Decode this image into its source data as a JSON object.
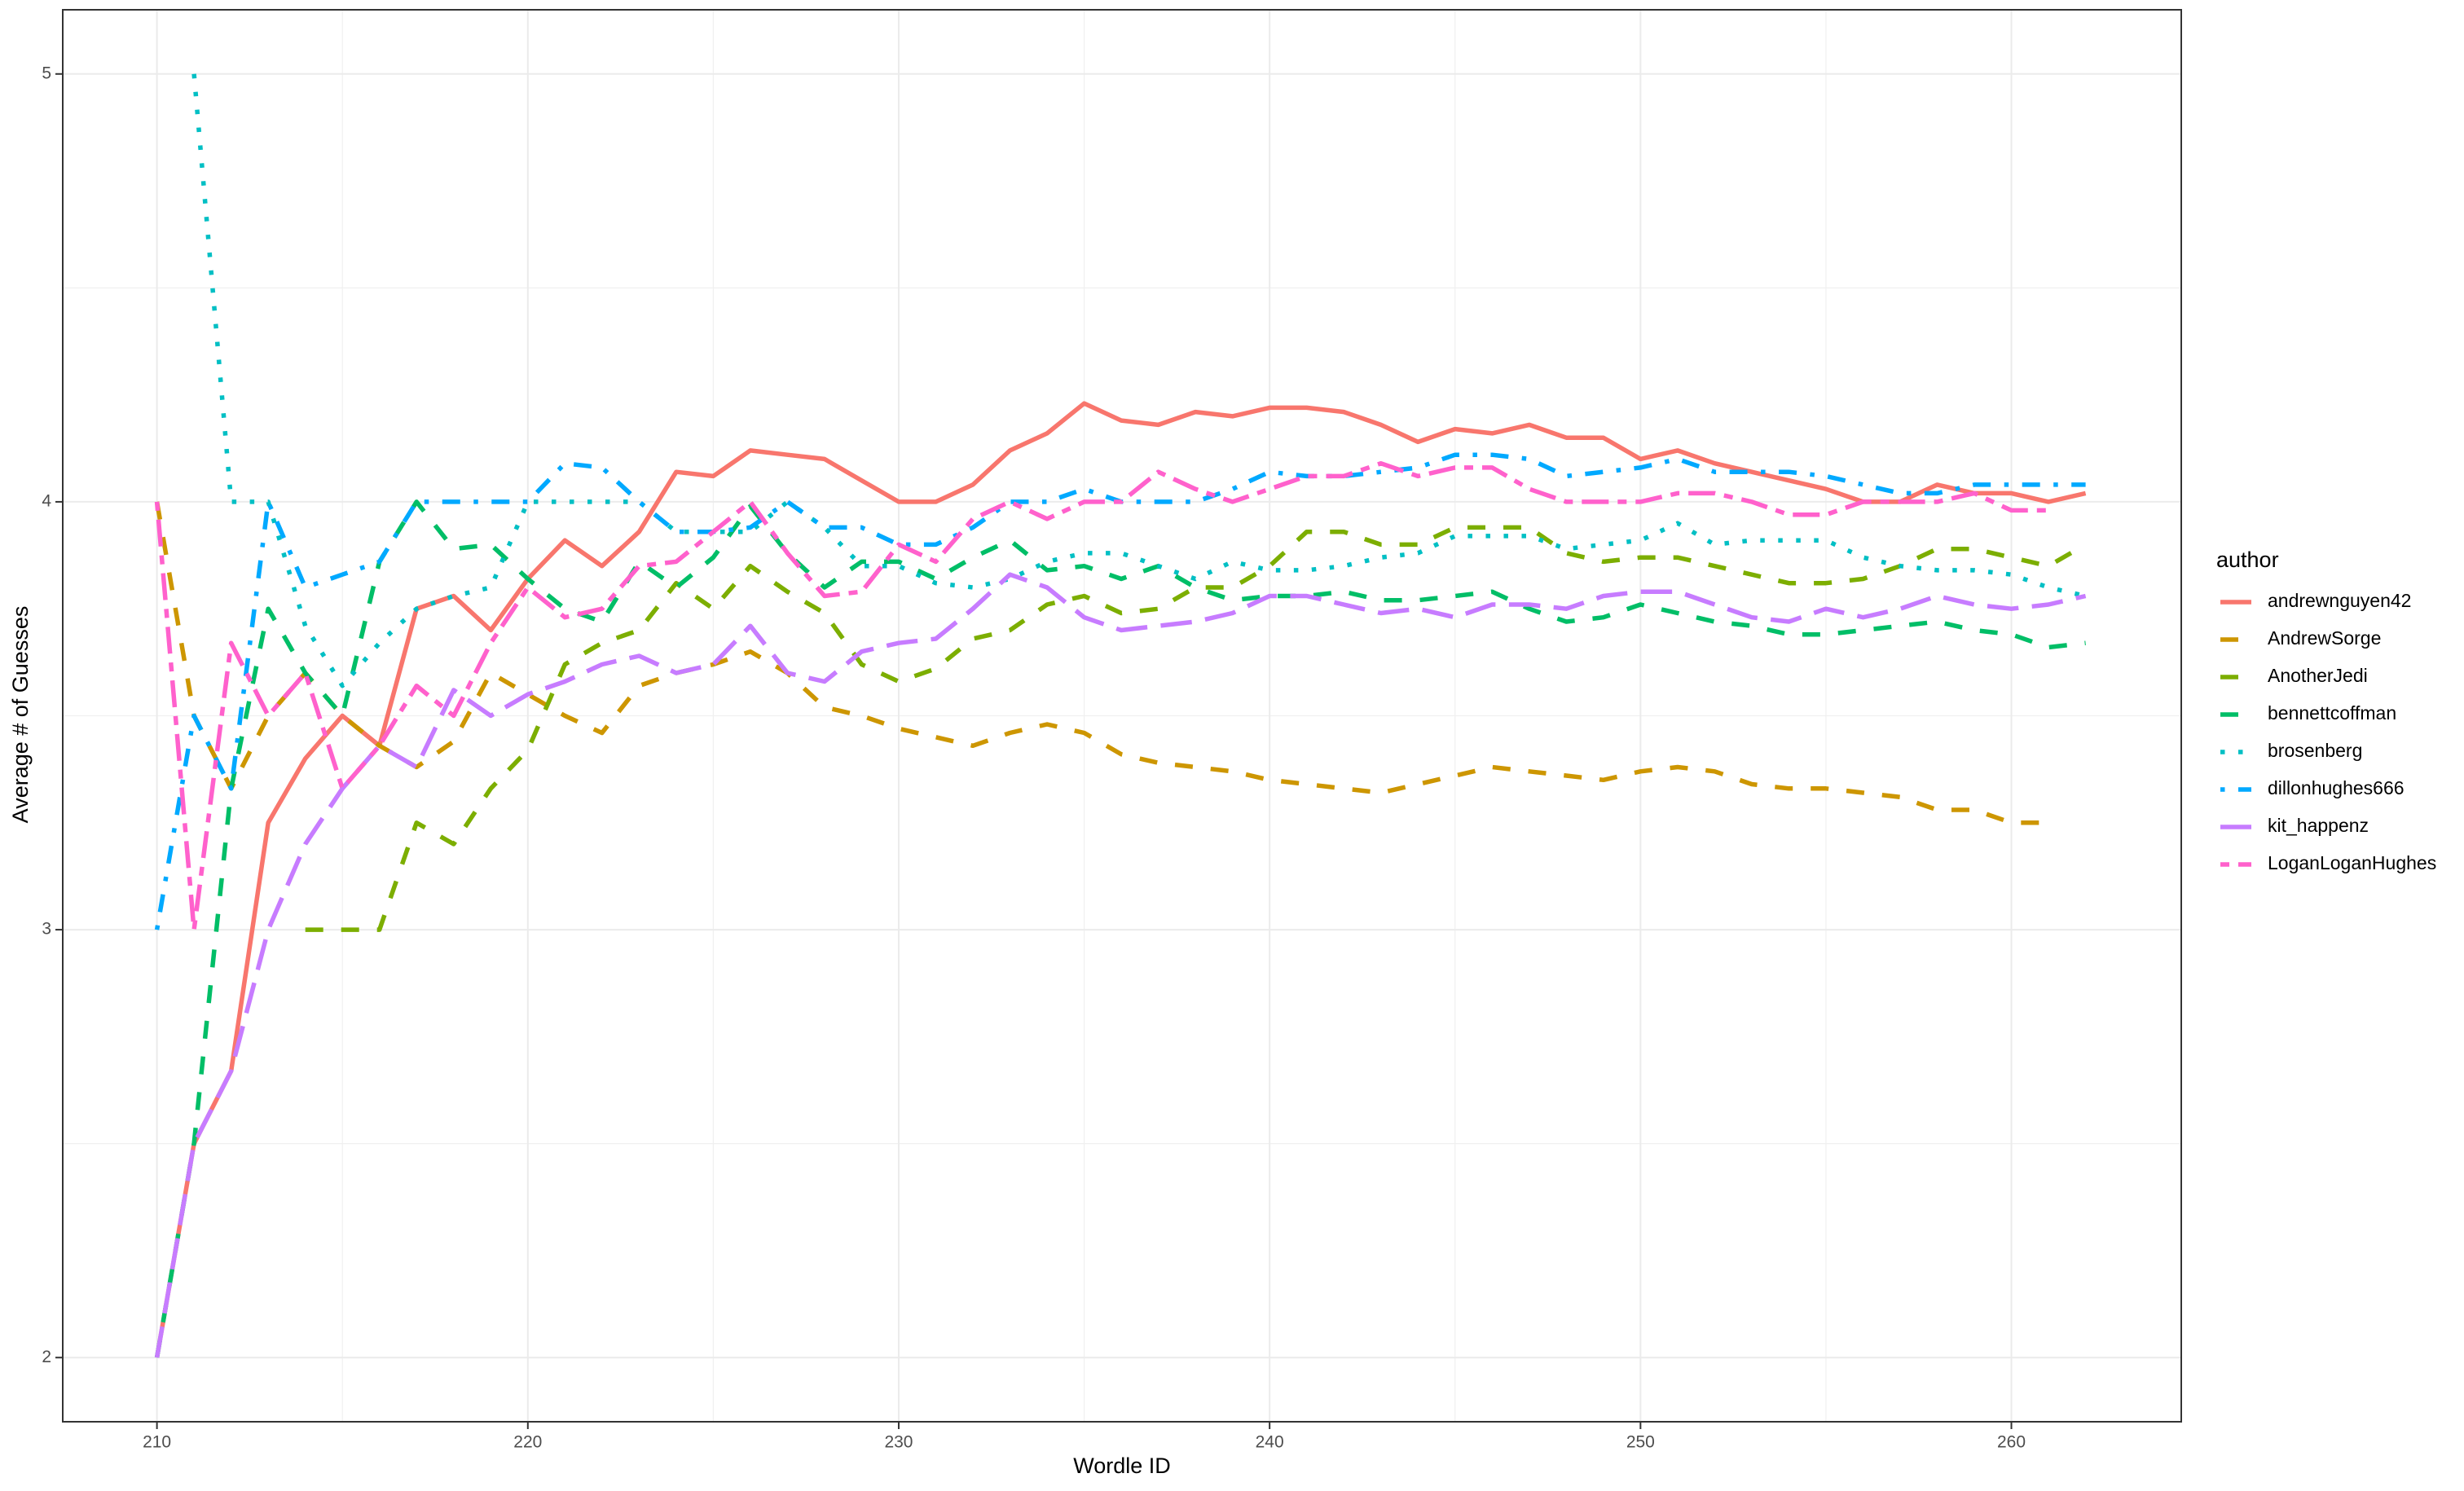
{
  "chart_data": {
    "type": "line",
    "x_label": "Wordle ID",
    "y_label": "Average # of Guesses",
    "legend_title": "author",
    "legend_position": "right",
    "grid": true,
    "xlim": [
      207.46,
      264.58
    ],
    "ylim": [
      1.85,
      5.15
    ],
    "xticks": [
      210,
      220,
      230,
      240,
      250,
      260
    ],
    "yticks": [
      2,
      3,
      4,
      5
    ],
    "x_minor_ticks": [
      215,
      225,
      235,
      245,
      255
    ],
    "y_minor_ticks": [
      2.5,
      3.5,
      4.5
    ],
    "x": [
      210,
      211,
      212,
      213,
      214,
      215,
      216,
      217,
      218,
      219,
      220,
      221,
      222,
      223,
      224,
      225,
      226,
      227,
      228,
      229,
      230,
      231,
      232,
      233,
      234,
      235,
      236,
      237,
      238,
      239,
      240,
      241,
      242,
      243,
      244,
      245,
      246,
      247,
      248,
      249,
      250,
      251,
      252,
      253,
      254,
      255,
      256,
      257,
      258,
      259,
      260,
      261,
      262
    ],
    "series": [
      {
        "name": "andrewnguyen42",
        "color": "#F8766D",
        "linetype": "solid",
        "values": [
          2.0,
          2.5,
          2.67,
          3.25,
          3.4,
          3.5,
          3.43,
          3.75,
          3.78,
          3.7,
          3.82,
          3.91,
          3.85,
          3.93,
          4.07,
          4.06,
          4.12,
          4.11,
          4.1,
          4.05,
          4.0,
          4.0,
          4.04,
          4.12,
          4.16,
          4.23,
          4.19,
          4.18,
          4.21,
          4.2,
          4.22,
          4.22,
          4.21,
          4.18,
          4.14,
          4.17,
          4.16,
          4.18,
          4.15,
          4.15,
          4.1,
          4.12,
          4.09,
          4.07,
          4.05,
          4.03,
          4.0,
          4.0,
          4.04,
          4.02,
          4.02,
          4.0,
          4.02
        ]
      },
      {
        "name": "AndrewSorge",
        "color": "#CD9600",
        "linetype": "dashed",
        "values": [
          4.0,
          3.5,
          3.33,
          3.5,
          3.6,
          3.5,
          3.43,
          3.38,
          3.44,
          3.6,
          3.55,
          3.5,
          3.46,
          3.57,
          3.6,
          3.62,
          3.65,
          3.6,
          3.52,
          3.5,
          3.47,
          3.45,
          3.43,
          3.46,
          3.48,
          3.46,
          3.41,
          3.39,
          3.38,
          3.37,
          3.35,
          3.34,
          3.33,
          3.32,
          3.34,
          3.36,
          3.38,
          3.37,
          3.36,
          3.35,
          3.37,
          3.38,
          3.37,
          3.34,
          3.33,
          3.33,
          3.32,
          3.31,
          3.28,
          3.28,
          3.25,
          3.25,
          null
        ]
      },
      {
        "name": "AnotherJedi",
        "color": "#7CAE00",
        "linetype": "dashed",
        "values": [
          null,
          null,
          null,
          null,
          3.0,
          3.0,
          3.0,
          3.25,
          3.2,
          3.33,
          3.42,
          3.62,
          3.67,
          3.7,
          3.81,
          3.75,
          3.85,
          3.79,
          3.74,
          3.62,
          3.58,
          3.61,
          3.68,
          3.7,
          3.76,
          3.78,
          3.74,
          3.75,
          3.8,
          3.8,
          3.85,
          3.93,
          3.93,
          3.9,
          3.9,
          3.94,
          3.94,
          3.94,
          3.88,
          3.86,
          3.87,
          3.87,
          3.85,
          3.83,
          3.81,
          3.81,
          3.82,
          3.85,
          3.89,
          3.89,
          3.87,
          3.85,
          3.9
        ]
      },
      {
        "name": "bennettcoffman",
        "color": "#00BE67",
        "linetype": "dashed",
        "values": [
          2.0,
          2.5,
          3.33,
          3.75,
          3.6,
          3.5,
          3.86,
          4.0,
          3.89,
          3.9,
          3.82,
          3.75,
          3.72,
          3.86,
          3.8,
          3.87,
          3.99,
          3.88,
          3.8,
          3.86,
          3.86,
          3.82,
          3.87,
          3.91,
          3.84,
          3.85,
          3.82,
          3.85,
          3.8,
          3.77,
          3.78,
          3.78,
          3.79,
          3.77,
          3.77,
          3.78,
          3.79,
          3.75,
          3.72,
          3.73,
          3.76,
          3.74,
          3.72,
          3.71,
          3.69,
          3.69,
          3.7,
          3.71,
          3.72,
          3.7,
          3.69,
          3.66,
          3.67
        ]
      },
      {
        "name": "brosenberg",
        "color": "#00BFC4",
        "linetype": "dotted",
        "values": [
          null,
          5.0,
          4.0,
          4.0,
          3.71,
          3.57,
          3.67,
          3.75,
          3.78,
          3.8,
          4.0,
          4.0,
          4.0,
          4.0,
          3.93,
          3.93,
          3.93,
          4.0,
          3.94,
          3.85,
          3.85,
          3.81,
          3.8,
          3.82,
          3.86,
          3.88,
          3.88,
          3.85,
          3.82,
          3.86,
          3.84,
          3.84,
          3.85,
          3.87,
          3.88,
          3.92,
          3.92,
          3.92,
          3.89,
          3.9,
          3.91,
          3.95,
          3.9,
          3.91,
          3.91,
          3.91,
          3.87,
          3.85,
          3.84,
          3.84,
          3.83,
          3.8,
          3.78
        ]
      },
      {
        "name": "dillonhughes666",
        "color": "#00A9FF",
        "linetype": "dotdash",
        "values": [
          3.0,
          3.5,
          3.33,
          4.0,
          3.8,
          3.83,
          3.86,
          4.0,
          4.0,
          4.0,
          4.0,
          4.09,
          4.08,
          4.0,
          3.93,
          3.93,
          3.94,
          4.0,
          3.94,
          3.94,
          3.9,
          3.9,
          3.94,
          4.0,
          4.0,
          4.03,
          4.0,
          4.0,
          4.0,
          4.03,
          4.07,
          4.06,
          4.06,
          4.07,
          4.08,
          4.11,
          4.11,
          4.1,
          4.06,
          4.07,
          4.08,
          4.1,
          4.07,
          4.07,
          4.07,
          4.06,
          4.04,
          4.02,
          4.02,
          4.04,
          4.04,
          4.04,
          4.04
        ]
      },
      {
        "name": "kit_happenz",
        "color": "#C77CFF",
        "linetype": "longdash",
        "values": [
          2.0,
          2.5,
          2.67,
          3.0,
          3.2,
          3.33,
          3.43,
          3.38,
          3.56,
          3.5,
          3.55,
          3.58,
          3.62,
          3.64,
          3.6,
          3.62,
          3.71,
          3.6,
          3.58,
          3.65,
          3.67,
          3.68,
          3.75,
          3.83,
          3.8,
          3.73,
          3.7,
          3.71,
          3.72,
          3.74,
          3.78,
          3.78,
          3.76,
          3.74,
          3.75,
          3.73,
          3.76,
          3.76,
          3.75,
          3.78,
          3.79,
          3.79,
          3.76,
          3.73,
          3.72,
          3.75,
          3.73,
          3.75,
          3.78,
          3.76,
          3.75,
          3.76,
          3.78
        ]
      },
      {
        "name": "LoganLoganHughes",
        "color": "#FF61CC",
        "linetype": "twodash",
        "values": [
          4.0,
          3.0,
          3.67,
          3.5,
          3.6,
          3.33,
          3.43,
          3.57,
          3.5,
          3.67,
          3.8,
          3.73,
          3.75,
          3.85,
          3.86,
          3.93,
          4.0,
          3.88,
          3.78,
          3.79,
          3.9,
          3.86,
          3.96,
          4.0,
          3.96,
          4.0,
          4.0,
          4.07,
          4.03,
          4.0,
          4.03,
          4.06,
          4.06,
          4.09,
          4.06,
          4.08,
          4.08,
          4.03,
          4.0,
          4.0,
          4.0,
          4.02,
          4.02,
          4.0,
          3.97,
          3.97,
          4.0,
          4.0,
          4.0,
          4.02,
          3.98,
          3.98,
          null
        ]
      }
    ]
  }
}
